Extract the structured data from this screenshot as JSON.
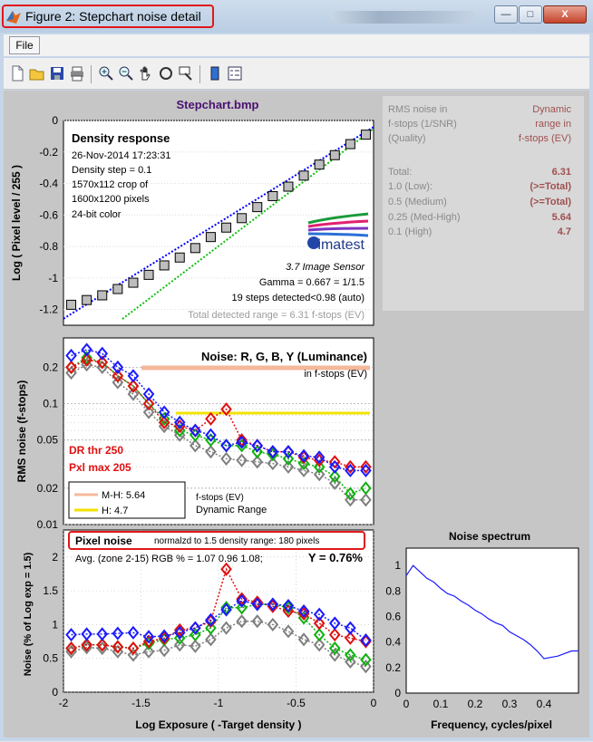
{
  "window": {
    "title": "Figure 2: Stepchart noise detail",
    "min_label": "—",
    "max_label": "□",
    "close_label": "X"
  },
  "menu": {
    "file_label": "File"
  },
  "toolbar": {
    "icons": [
      "new-file-icon",
      "open-folder-icon",
      "save-icon",
      "print-icon",
      "zoom-in-icon",
      "zoom-out-icon",
      "pan-hand-icon",
      "rotate-3d-icon",
      "data-cursor-icon",
      "colorbar-icon",
      "legend-icon"
    ]
  },
  "density_panel": {
    "title": "Stepchart.bmp",
    "heading": "Density response",
    "info_lines": [
      "26-Nov-2014 17:23:31",
      "Density step = 0.1",
      "1570x112 crop of",
      "1600x1200 pixels",
      "24-bit color"
    ],
    "logo_text": "imatest",
    "sensor_label": "3.7  Image Sensor",
    "gamma_line": "Gamma = 0.667 = 1/1.5",
    "steps_line": "19 steps detected<0.98 (auto)",
    "range_line": "Total detected range = 6.31 f-stops (EV)",
    "ylabel": "Log ( Pixel level / 255 )",
    "yticks": [
      "0",
      "-0.2",
      "-0.4",
      "-0.6",
      "-0.8",
      "-1",
      "-1.2"
    ]
  },
  "table": {
    "col1_header": [
      "RMS noise in",
      "f-stops (1/SNR)",
      "(Quality)"
    ],
    "col2_header": [
      "Dynamic",
      "range in",
      "f-stops (EV)"
    ],
    "rows": [
      {
        "label": "Total:",
        "value": "6.31"
      },
      {
        "label": "1.0  (Low):",
        "value": "(>=Total)"
      },
      {
        "label": "0.5  (Medium)",
        "value": "(>=Total)"
      },
      {
        "label": "0.25 (Med-High)",
        "value": "5.64"
      },
      {
        "label": "0.1  (High)",
        "value": "4.7"
      }
    ]
  },
  "noise_panel": {
    "title": "Noise: R, G, B, Y (Luminance)",
    "subtitle": "in f-stops (EV)",
    "ylabel": "RMS noise (f-stops)",
    "yticks": [
      "0.2",
      "0.1",
      "0.05",
      "0.02",
      "0.01"
    ],
    "dr_thr": "DR thr 250",
    "pxl_max": "Pxl max 205",
    "legend": [
      {
        "label": "M-H: 5.64",
        "color": "#f4b89b"
      },
      {
        "label": "H:    4.7",
        "color": "#f2e200"
      }
    ],
    "legend_note1": "f-stops (EV)",
    "legend_note2": "Dynamic Range"
  },
  "pixel_panel": {
    "box_title": "Pixel noise",
    "box_subtitle": "normalzd to 1.5 density range: 180 pixels",
    "avg_line": "Avg. (zone 2-15) RGB % = 1.07  0.96  1.08;",
    "y_pct": "Y = 0.76%",
    "ylabel": "Noise (% of Log exp = 1.5)",
    "xlabel": "Log Exposure ( -Target density )",
    "yticks": [
      "0",
      "0.5",
      "1",
      "1.5",
      "2"
    ],
    "xticks": [
      "-2",
      "-1.5",
      "-1",
      "-0.5",
      "0"
    ]
  },
  "spectrum_panel": {
    "title": "Noise spectrum",
    "xlabel": "Frequency, cycles/pixel",
    "yticks": [
      "0",
      "0.2",
      "0.4",
      "0.6",
      "0.8",
      "1"
    ],
    "xticks": [
      "0",
      "0.1",
      "0.2",
      "0.3",
      "0.4"
    ]
  },
  "chart_data": [
    {
      "type": "scatter",
      "title": "Stepchart.bmp",
      "ylabel": "Log ( Pixel level / 255 )",
      "xlim": [
        -2,
        0
      ],
      "ylim": [
        -1.3,
        0
      ],
      "series": [
        {
          "name": "Density response",
          "color": "#000000",
          "x": [
            -1.95,
            -1.85,
            -1.75,
            -1.65,
            -1.55,
            -1.45,
            -1.35,
            -1.25,
            -1.15,
            -1.05,
            -0.95,
            -0.85,
            -0.75,
            -0.65,
            -0.55,
            -0.45,
            -0.35,
            -0.25,
            -0.15,
            -0.05
          ],
          "y": [
            -1.17,
            -1.14,
            -1.11,
            -1.07,
            -1.03,
            -0.98,
            -0.92,
            -0.87,
            -0.81,
            -0.74,
            -0.68,
            -0.62,
            -0.55,
            -0.48,
            -0.42,
            -0.35,
            -0.28,
            -0.22,
            -0.15,
            -0.09
          ]
        }
      ]
    },
    {
      "type": "line",
      "title": "Noise: R, G, B, Y (Luminance)",
      "ylabel": "RMS noise (f-stops)",
      "yscale": "log",
      "ylim": [
        0.01,
        0.35
      ],
      "xlim": [
        -2,
        0
      ],
      "x": [
        -1.95,
        -1.85,
        -1.75,
        -1.65,
        -1.55,
        -1.45,
        -1.35,
        -1.25,
        -1.15,
        -1.05,
        -0.95,
        -0.85,
        -0.75,
        -0.65,
        -0.55,
        -0.45,
        -0.35,
        -0.25,
        -0.15,
        -0.05
      ],
      "series": [
        {
          "color": "#1a1aff",
          "values": [
            0.25,
            0.28,
            0.26,
            0.2,
            0.17,
            0.12,
            0.085,
            0.07,
            0.06,
            0.055,
            0.045,
            0.048,
            0.045,
            0.04,
            0.04,
            0.037,
            0.036,
            0.03,
            0.028,
            0.028
          ]
        },
        {
          "color": "#e01010",
          "values": [
            0.2,
            0.23,
            0.22,
            0.17,
            0.14,
            0.1,
            0.07,
            0.065,
            0.06,
            0.075,
            0.09,
            0.05,
            0.045,
            0.04,
            0.04,
            0.036,
            0.034,
            0.033,
            0.03,
            0.03
          ]
        },
        {
          "color": "#10b010",
          "values": [
            0.2,
            0.24,
            0.22,
            0.17,
            0.14,
            0.1,
            0.075,
            0.06,
            0.055,
            0.05,
            0.045,
            0.045,
            0.04,
            0.038,
            0.035,
            0.032,
            0.03,
            0.025,
            0.018,
            0.02
          ]
        },
        {
          "color": "#7f7f7f",
          "values": [
            0.18,
            0.21,
            0.2,
            0.15,
            0.12,
            0.085,
            0.065,
            0.055,
            0.045,
            0.04,
            0.035,
            0.034,
            0.033,
            0.032,
            0.03,
            0.028,
            0.026,
            0.022,
            0.016,
            0.016
          ]
        }
      ]
    },
    {
      "type": "line",
      "title": "Pixel noise",
      "xlabel": "Log Exposure ( -Target density )",
      "ylabel": "Noise (% of Log exp = 1.5)",
      "xlim": [
        -2,
        0
      ],
      "ylim": [
        0,
        2.4
      ],
      "x": [
        -1.95,
        -1.85,
        -1.75,
        -1.65,
        -1.55,
        -1.45,
        -1.35,
        -1.25,
        -1.15,
        -1.05,
        -0.95,
        -0.85,
        -0.75,
        -0.65,
        -0.55,
        -0.45,
        -0.35,
        -0.25,
        -0.15,
        -0.05
      ],
      "series": [
        {
          "color": "#1a1aff",
          "values": [
            0.85,
            0.86,
            0.86,
            0.87,
            0.88,
            0.82,
            0.83,
            0.88,
            0.95,
            1.07,
            1.22,
            1.35,
            1.3,
            1.3,
            1.28,
            1.2,
            1.15,
            1.02,
            0.95,
            0.77
          ]
        },
        {
          "color": "#e01010",
          "values": [
            0.65,
            0.7,
            0.7,
            0.67,
            0.65,
            0.75,
            0.8,
            0.92,
            0.95,
            1.05,
            1.82,
            1.38,
            1.33,
            1.27,
            1.2,
            1.16,
            1.02,
            0.85,
            0.8,
            0.75
          ]
        },
        {
          "color": "#10b010",
          "values": [
            0.65,
            0.7,
            0.7,
            0.67,
            0.65,
            0.72,
            0.78,
            0.8,
            0.85,
            0.95,
            1.25,
            1.25,
            1.3,
            1.3,
            1.25,
            1.1,
            0.85,
            0.65,
            0.55,
            0.48
          ]
        },
        {
          "color": "#7f7f7f",
          "values": [
            0.6,
            0.66,
            0.65,
            0.6,
            0.55,
            0.6,
            0.62,
            0.7,
            0.68,
            0.78,
            0.95,
            1.05,
            1.05,
            1.0,
            0.9,
            0.78,
            0.7,
            0.55,
            0.45,
            0.38
          ]
        }
      ]
    },
    {
      "type": "line",
      "title": "Noise spectrum",
      "xlabel": "Frequency, cycles/pixel",
      "xlim": [
        0,
        0.5
      ],
      "ylim": [
        0,
        1
      ],
      "x": [
        0,
        0.02,
        0.04,
        0.06,
        0.08,
        0.1,
        0.12,
        0.14,
        0.16,
        0.18,
        0.2,
        0.22,
        0.24,
        0.26,
        0.28,
        0.3,
        0.32,
        0.34,
        0.36,
        0.38,
        0.4,
        0.42,
        0.44,
        0.46,
        0.48,
        0.5
      ],
      "series": [
        {
          "color": "#1a1aff",
          "values": [
            0.92,
            1.0,
            0.95,
            0.9,
            0.87,
            0.82,
            0.78,
            0.76,
            0.72,
            0.69,
            0.65,
            0.62,
            0.58,
            0.55,
            0.53,
            0.48,
            0.45,
            0.42,
            0.38,
            0.33,
            0.27,
            0.28,
            0.29,
            0.31,
            0.33,
            0.33
          ]
        }
      ]
    }
  ]
}
